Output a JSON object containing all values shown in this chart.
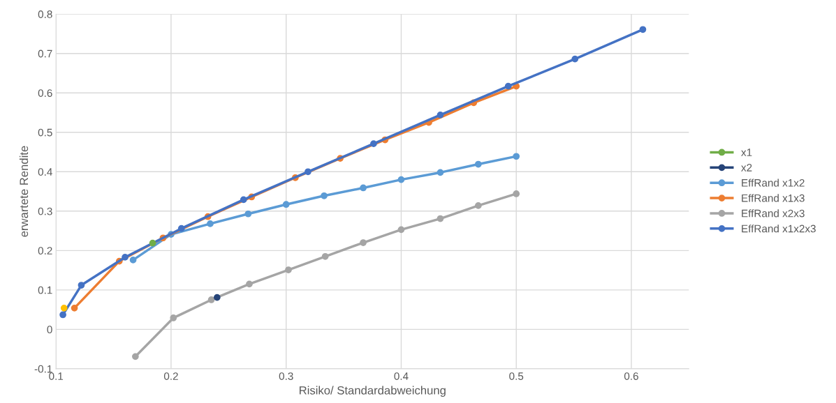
{
  "chart_data": {
    "type": "line",
    "xlabel": "Risiko/ Standardabweichung",
    "ylabel": "erwartete Rendite",
    "xlim": [
      0.1,
      0.65
    ],
    "xticks": [
      0.1,
      0.2,
      0.3,
      0.4,
      0.5,
      0.6
    ],
    "ylim": [
      -0.1,
      0.8
    ],
    "yticks": [
      -0.1,
      0,
      0.1,
      0.2,
      0.3,
      0.4,
      0.5,
      0.6,
      0.7,
      0.8
    ],
    "grid": true,
    "legend": "right",
    "marker": "circle",
    "line_style": "solid",
    "series": [
      {
        "color": "#ffc000",
        "x": [
          0.107
        ],
        "values": [
          0.054
        ]
      },
      {
        "name": "x1",
        "color": "#70ad47",
        "x": [
          0.184
        ],
        "values": [
          0.219
        ]
      },
      {
        "name": "x2",
        "color": "#264478",
        "x": [
          0.24
        ],
        "values": [
          0.081
        ]
      },
      {
        "name": "EffRand x1x2",
        "color": "#5b9bd5",
        "x": [
          0.167,
          0.2,
          0.234,
          0.267,
          0.3,
          0.333,
          0.367,
          0.4,
          0.434,
          0.467,
          0.5
        ],
        "values": [
          0.176,
          0.241,
          0.268,
          0.293,
          0.317,
          0.339,
          0.359,
          0.38,
          0.398,
          0.419,
          0.439
        ]
      },
      {
        "name": "EffRand x1x3",
        "color": "#ed7d31",
        "x": [
          0.116,
          0.155,
          0.193,
          0.232,
          0.27,
          0.308,
          0.347,
          0.386,
          0.424,
          0.463,
          0.5
        ],
        "values": [
          0.054,
          0.173,
          0.232,
          0.286,
          0.336,
          0.385,
          0.434,
          0.481,
          0.525,
          0.575,
          0.617
        ]
      },
      {
        "name": "EffRand x2x3",
        "color": "#a5a5a5",
        "x": [
          0.169,
          0.202,
          0.235,
          0.268,
          0.302,
          0.334,
          0.367,
          0.4,
          0.434,
          0.467,
          0.5
        ],
        "values": [
          -0.069,
          0.029,
          0.075,
          0.115,
          0.151,
          0.185,
          0.22,
          0.253,
          0.281,
          0.314,
          0.344
        ]
      },
      {
        "name": "EffRand x1x2x3",
        "color": "#4472c4",
        "x": [
          0.106,
          0.122,
          0.16,
          0.209,
          0.263,
          0.319,
          0.376,
          0.434,
          0.493,
          0.551,
          0.61
        ],
        "values": [
          0.037,
          0.112,
          0.183,
          0.256,
          0.329,
          0.4,
          0.471,
          0.544,
          0.617,
          0.686,
          0.761
        ]
      }
    ]
  }
}
